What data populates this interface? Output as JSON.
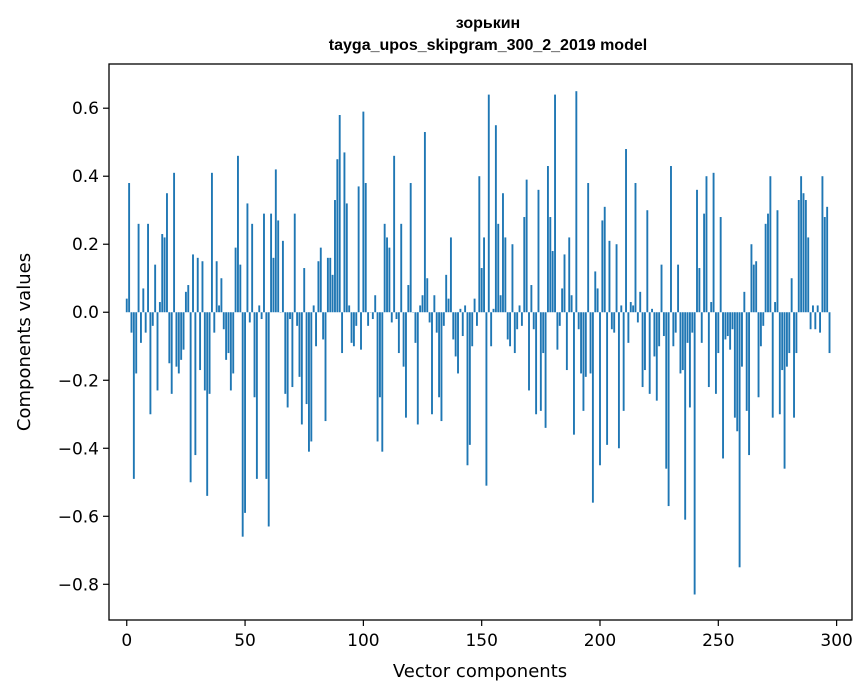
{
  "chart_data": {
    "type": "bar",
    "title": "зорькин",
    "subtitle": "tayga_upos_skipgram_300_2_2019 model",
    "xlabel": "Vector components",
    "ylabel": "Components values",
    "xlim": [
      -7.5,
      306.5
    ],
    "ylim": [
      -0.905,
      0.73
    ],
    "x_ticks": [
      0,
      50,
      100,
      150,
      200,
      250,
      300
    ],
    "x_tick_labels": [
      "0",
      "50",
      "100",
      "150",
      "200",
      "250",
      "300"
    ],
    "y_ticks": [
      -0.8,
      -0.6,
      -0.4,
      -0.2,
      0.0,
      0.2,
      0.4,
      0.6
    ],
    "y_tick_labels": [
      "−0.8",
      "−0.6",
      "−0.4",
      "−0.2",
      "0.0",
      "0.2",
      "0.4",
      "0.6"
    ],
    "bar_color": "#1f77b4",
    "series": [
      {
        "name": "зорькин",
        "values": [
          0.04,
          0.38,
          -0.06,
          -0.49,
          -0.18,
          0.26,
          -0.09,
          0.07,
          -0.06,
          0.26,
          -0.3,
          -0.04,
          0.14,
          -0.23,
          0.03,
          0.23,
          0.22,
          0.35,
          -0.15,
          -0.24,
          0.41,
          -0.16,
          -0.18,
          -0.14,
          -0.11,
          0.06,
          0.08,
          -0.5,
          0.17,
          -0.42,
          0.16,
          -0.17,
          0.15,
          -0.23,
          -0.54,
          -0.24,
          0.41,
          -0.06,
          0.15,
          0.02,
          0.1,
          -0.05,
          -0.14,
          -0.12,
          -0.23,
          -0.18,
          0.19,
          0.46,
          0.14,
          -0.66,
          -0.59,
          0.32,
          -0.03,
          0.26,
          -0.25,
          -0.49,
          0.02,
          -0.02,
          0.29,
          -0.49,
          -0.63,
          0.29,
          0.16,
          0.42,
          0.27,
          0.0,
          0.21,
          -0.24,
          -0.28,
          -0.02,
          -0.22,
          0.29,
          -0.04,
          -0.19,
          -0.33,
          0.13,
          -0.27,
          -0.41,
          -0.38,
          0.02,
          -0.1,
          0.15,
          0.19,
          -0.08,
          -0.32,
          0.16,
          0.16,
          0.11,
          0.33,
          0.45,
          0.58,
          -0.12,
          0.47,
          0.32,
          0.02,
          -0.09,
          -0.1,
          -0.04,
          0.37,
          -0.11,
          0.59,
          0.38,
          -0.04,
          0.0,
          -0.02,
          0.05,
          -0.38,
          -0.25,
          -0.41,
          0.26,
          0.22,
          0.19,
          -0.03,
          0.46,
          -0.02,
          -0.12,
          0.26,
          -0.16,
          -0.31,
          0.08,
          0.38,
          0.0,
          -0.09,
          -0.33,
          0.02,
          0.05,
          0.53,
          0.1,
          -0.03,
          -0.3,
          0.05,
          -0.06,
          -0.25,
          -0.32,
          -0.04,
          0.11,
          0.04,
          0.22,
          -0.08,
          -0.13,
          -0.18,
          0.01,
          -0.07,
          0.02,
          -0.45,
          -0.39,
          -0.1,
          0.04,
          -0.04,
          0.4,
          0.13,
          0.22,
          -0.51,
          0.64,
          -0.1,
          0.01,
          0.55,
          0.26,
          0.05,
          0.35,
          0.22,
          -0.08,
          -0.1,
          0.2,
          -0.12,
          -0.05,
          0.02,
          -0.04,
          0.28,
          0.39,
          -0.23,
          0.08,
          -0.05,
          -0.3,
          0.36,
          -0.29,
          -0.12,
          -0.34,
          0.43,
          0.28,
          0.18,
          0.64,
          -0.11,
          -0.04,
          0.07,
          0.17,
          -0.17,
          0.22,
          0.05,
          -0.36,
          0.65,
          -0.05,
          -0.18,
          -0.29,
          -0.19,
          0.38,
          -0.18,
          -0.56,
          0.12,
          0.07,
          -0.45,
          0.27,
          0.31,
          -0.39,
          0.21,
          -0.05,
          -0.06,
          0.2,
          -0.4,
          0.02,
          -0.29,
          0.48,
          -0.09,
          0.03,
          0.02,
          0.38,
          -0.03,
          0.06,
          -0.22,
          -0.17,
          0.3,
          -0.24,
          0.01,
          -0.13,
          -0.26,
          -0.1,
          0.14,
          -0.07,
          -0.46,
          -0.57,
          0.43,
          -0.1,
          -0.06,
          0.14,
          -0.18,
          -0.17,
          -0.61,
          -0.09,
          -0.28,
          -0.06,
          -0.83,
          0.36,
          0.13,
          -0.09,
          0.29,
          0.4,
          -0.22,
          0.03,
          0.41,
          -0.24,
          -0.12,
          0.28,
          -0.43,
          -0.08,
          -0.07,
          -0.11,
          -0.05,
          -0.31,
          -0.35,
          -0.75,
          -0.16,
          0.06,
          -0.29,
          -0.42,
          0.2,
          0.14,
          0.15,
          -0.25,
          -0.1,
          -0.04,
          0.26,
          0.29,
          0.4,
          -0.31,
          0.03,
          0.3,
          -0.3,
          -0.17,
          -0.46,
          -0.16,
          -0.12,
          0.1,
          -0.31,
          -0.12,
          0.33,
          0.4,
          0.35,
          0.33,
          0.22,
          -0.05,
          0.02,
          -0.05,
          0.02,
          -0.06,
          0.4,
          0.28,
          0.31,
          -0.12
        ]
      }
    ]
  }
}
